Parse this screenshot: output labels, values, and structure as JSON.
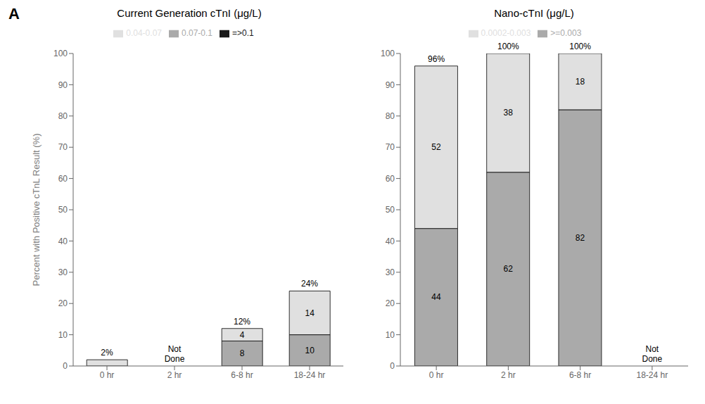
{
  "chart_data": [
    {
      "type": "bar",
      "stacked": true,
      "title": "Current Generation cTnI (μg/L)",
      "y_label": "Percent with Positive cTnL Result (%)",
      "annotations": [
        "A"
      ],
      "categories": [
        "0 hr",
        "2 hr",
        "6-8 hr",
        "18-24 hr"
      ],
      "series": [
        {
          "name": "=>0.1",
          "color": "#1a1a1a",
          "values": [
            0,
            null,
            0,
            0
          ]
        },
        {
          "name": "0.07-0.1",
          "color": "#aaaaaa",
          "values": [
            0,
            null,
            8,
            10
          ],
          "value_labels": [
            null,
            null,
            "8",
            "10"
          ]
        },
        {
          "name": "0.04-0.07",
          "color": "#e0e0e0",
          "values": [
            2,
            null,
            4,
            14
          ],
          "value_labels": [
            null,
            null,
            "4",
            "14"
          ]
        }
      ],
      "total_labels": [
        "2%",
        "Not\nDone",
        "12%",
        "24%"
      ],
      "ylim": [
        0,
        100
      ],
      "yticks": [
        0,
        10,
        20,
        30,
        40,
        50,
        60,
        70,
        80,
        90,
        100
      ],
      "grid": false
    },
    {
      "type": "bar",
      "stacked": true,
      "title": "Nano-cTnI (μg/L)",
      "categories": [
        "0 hr",
        "2 hr",
        "6-8 hr",
        "18-24 hr"
      ],
      "series": [
        {
          "name": ">=0.003",
          "color": "#aaaaaa",
          "values": [
            44,
            62,
            82,
            null
          ],
          "data_labels": true
        },
        {
          "name": "0.0002-0.003",
          "color": "#e0e0e0",
          "values": [
            52,
            38,
            18,
            null
          ],
          "data_labels": true
        }
      ],
      "total_labels": [
        "96%",
        "100%",
        "100%",
        "Not\nDone"
      ],
      "ylim": [
        0,
        100
      ],
      "yticks": [
        0,
        10,
        20,
        30,
        40,
        50,
        60,
        70,
        80,
        90,
        100
      ],
      "grid": false
    }
  ]
}
